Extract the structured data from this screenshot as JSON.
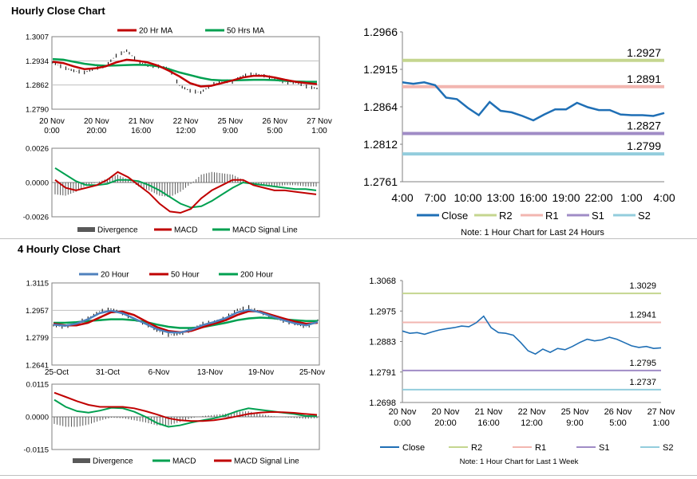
{
  "sections": {
    "hourly_title": "Hourly Close Chart",
    "four_hourly_title": "4 Hourly Close Chart"
  },
  "chart_data": [
    {
      "id": "hourly_price",
      "type": "line",
      "title": "",
      "legend": [
        "20 Hr MA",
        "50 Hrs MA"
      ],
      "legend_colors": [
        "#c00000",
        "#00a050"
      ],
      "ylim": [
        1.279,
        1.3007
      ],
      "yticks": [
        "1.3007",
        "1.2934",
        "1.2862",
        "1.2790"
      ],
      "xticks": [
        [
          "20 Nov",
          "0:00"
        ],
        [
          "20 Nov",
          "20:00"
        ],
        [
          "21 Nov",
          "16:00"
        ],
        [
          "22 Nov",
          "12:00"
        ],
        [
          "25 Nov",
          "9:00"
        ],
        [
          "26 Nov",
          "5:00"
        ],
        [
          "27 Nov",
          "1:00"
        ]
      ],
      "series": [
        {
          "name": "Close",
          "values": [
            1.293,
            1.2915,
            1.2905,
            1.29,
            1.2912,
            1.292,
            1.295,
            1.2965,
            1.2935,
            1.292,
            1.2918,
            1.2912,
            1.286,
            1.2845,
            1.284,
            1.2862,
            1.2875,
            1.2872,
            1.289,
            1.2895,
            1.289,
            1.288,
            1.287,
            1.287,
            1.2858,
            1.2852
          ]
        },
        {
          "name": "20 Hr MA",
          "values": [
            1.2932,
            1.2928,
            1.2918,
            1.291,
            1.2912,
            1.2918,
            1.293,
            1.2938,
            1.2935,
            1.293,
            1.292,
            1.2905,
            1.2888,
            1.2868,
            1.2858,
            1.286,
            1.2868,
            1.2876,
            1.2885,
            1.289,
            1.289,
            1.2885,
            1.2878,
            1.2872,
            1.2868,
            1.2865
          ]
        },
        {
          "name": "50 Hrs MA",
          "values": [
            1.294,
            1.2938,
            1.2932,
            1.2926,
            1.2922,
            1.292,
            1.2921,
            1.2922,
            1.2923,
            1.2922,
            1.2918,
            1.291,
            1.29,
            1.2892,
            1.2884,
            1.2878,
            1.2876,
            1.2876,
            1.2877,
            1.2878,
            1.2878,
            1.2877,
            1.2875,
            1.2873,
            1.2872,
            1.2872
          ]
        }
      ]
    },
    {
      "id": "hourly_macd",
      "type": "line",
      "legend": [
        "Divergence",
        "MACD",
        "MACD Signal Line"
      ],
      "legend_colors": [
        "#595959",
        "#c00000",
        "#00a050"
      ],
      "ylim": [
        -0.0026,
        0.0026
      ],
      "yticks": [
        "0.0026",
        "0.0000",
        "-0.0026"
      ],
      "series": [
        {
          "name": "MACD",
          "values": [
            0.0002,
            -0.0004,
            -0.0006,
            -0.0004,
            -0.0002,
            0.0002,
            0.0008,
            0.0004,
            -0.0002,
            -0.0008,
            -0.0016,
            -0.0022,
            -0.0023,
            -0.002,
            -0.0012,
            -0.0006,
            -0.0002,
            0.0002,
            0.0002,
            -0.0002,
            -0.0004,
            -0.0006,
            -0.0006,
            -0.0007,
            -0.0008,
            -0.0009
          ]
        },
        {
          "name": "MACD Signal Line",
          "values": [
            0.0011,
            0.0006,
            0.0001,
            -0.0002,
            -0.0002,
            -0.0001,
            0.0002,
            0.0002,
            0.0001,
            -0.0002,
            -0.0006,
            -0.0011,
            -0.0016,
            -0.0019,
            -0.0018,
            -0.0014,
            -0.0009,
            -0.0004,
            0.0,
            -0.0001,
            -0.0002,
            -0.0003,
            -0.0004,
            -0.0005,
            -0.0005,
            -0.0006
          ]
        },
        {
          "name": "Divergence",
          "values": [
            -0.0009,
            -0.001,
            -0.0007,
            -0.0002,
            0.0,
            0.0003,
            0.0006,
            0.0002,
            -0.0003,
            -0.0006,
            -0.001,
            -0.0011,
            -0.0007,
            -0.0001,
            0.0006,
            0.0008,
            0.0007,
            0.0006,
            0.0002,
            -0.0001,
            -0.0002,
            -0.0003,
            -0.0002,
            -0.0002,
            -0.0003,
            -0.0003
          ]
        }
      ]
    },
    {
      "id": "hourly_levels",
      "type": "line",
      "ylim": [
        1.2761,
        1.2966
      ],
      "yticks": [
        "1.2966",
        "1.2915",
        "1.2864",
        "1.2812",
        "1.2761"
      ],
      "xticks": [
        "4:00",
        "7:00",
        "10:00",
        "13:00",
        "16:00",
        "19:00",
        "22:00",
        "1:00",
        "4:00"
      ],
      "close": [
        1.2897,
        1.2895,
        1.2897,
        1.2893,
        1.2876,
        1.2874,
        1.2862,
        1.2852,
        1.287,
        1.2858,
        1.2856,
        1.2851,
        1.2845,
        1.2853,
        1.286,
        1.286,
        1.2869,
        1.2863,
        1.2859,
        1.2859,
        1.2853,
        1.2852,
        1.2852,
        1.2851,
        1.2855
      ],
      "levels": [
        {
          "name": "R2",
          "value": "1.2927",
          "color": "#c5d68f"
        },
        {
          "name": "R1",
          "value": "1.2891",
          "color": "#f2b6b0"
        },
        {
          "name": "S1",
          "value": "1.2827",
          "color": "#a08cc6"
        },
        {
          "name": "S2",
          "value": "1.2799",
          "color": "#93cddd"
        }
      ],
      "legend": [
        "Close",
        "R2",
        "R1",
        "S1",
        "S2"
      ],
      "note": "Note: 1 Hour Chart for Last 24 Hours"
    },
    {
      "id": "four_hourly_price",
      "type": "line",
      "legend": [
        "20 Hour",
        "50 Hour",
        "200 Hour"
      ],
      "legend_colors": [
        "#4f81bd",
        "#c00000",
        "#00a050"
      ],
      "ylim": [
        1.2641,
        1.3115
      ],
      "yticks": [
        "1.3115",
        "1.2957",
        "1.2799",
        "1.2641"
      ],
      "xticks": [
        "25-Oct",
        "31-Oct",
        "6-Nov",
        "13-Nov",
        "19-Nov",
        "25-Nov"
      ],
      "series": [
        {
          "name": "Close",
          "values": [
            1.287,
            1.286,
            1.2885,
            1.291,
            1.295,
            1.2965,
            1.294,
            1.2905,
            1.288,
            1.284,
            1.2815,
            1.282,
            1.2845,
            1.288,
            1.289,
            1.2915,
            1.296,
            1.2975,
            1.2945,
            1.292,
            1.2895,
            1.288,
            1.286,
            1.29
          ]
        },
        {
          "name": "20 Hour",
          "values": [
            1.2875,
            1.2868,
            1.288,
            1.2905,
            1.294,
            1.2955,
            1.294,
            1.291,
            1.288,
            1.2848,
            1.283,
            1.2828,
            1.2845,
            1.2872,
            1.289,
            1.2912,
            1.2945,
            1.296,
            1.2945,
            1.2922,
            1.29,
            1.2882,
            1.287,
            1.289
          ]
        },
        {
          "name": "50 Hour",
          "values": [
            1.288,
            1.287,
            1.287,
            1.2885,
            1.2915,
            1.2945,
            1.295,
            1.293,
            1.2895,
            1.286,
            1.2838,
            1.283,
            1.2838,
            1.286,
            1.288,
            1.29,
            1.293,
            1.2952,
            1.295,
            1.293,
            1.291,
            1.2892,
            1.288,
            1.2885
          ]
        },
        {
          "name": "200 Hour",
          "values": [
            1.2885,
            1.2885,
            1.2888,
            1.2895,
            1.29,
            1.2905,
            1.2905,
            1.29,
            1.289,
            1.2875,
            1.2862,
            1.2855,
            1.2855,
            1.286,
            1.2872,
            1.2885,
            1.29,
            1.291,
            1.2915,
            1.2912,
            1.2905,
            1.29,
            1.2895,
            1.2895
          ]
        }
      ]
    },
    {
      "id": "four_hourly_macd",
      "type": "line",
      "legend": [
        "Divergence",
        "MACD",
        "MACD Signal Line"
      ],
      "legend_colors": [
        "#595959",
        "#00a050",
        "#c00000"
      ],
      "ylim": [
        -0.0115,
        0.0115
      ],
      "yticks": [
        "0.0115",
        "0.0000",
        "-0.0115"
      ],
      "series": [
        {
          "name": "MACD",
          "values": [
            0.006,
            0.0035,
            0.002,
            0.0015,
            0.0022,
            0.0032,
            0.003,
            0.0018,
            0.0,
            -0.0022,
            -0.0035,
            -0.003,
            -0.002,
            -0.0012,
            -0.0005,
            0.0005,
            0.002,
            0.003,
            0.0025,
            0.002,
            0.0015,
            0.001,
            0.0003,
            0.0002
          ]
        },
        {
          "name": "MACD Signal Line",
          "values": [
            0.0085,
            0.007,
            0.0055,
            0.0042,
            0.0035,
            0.0035,
            0.0035,
            0.003,
            0.002,
            0.0008,
            -0.0005,
            -0.0012,
            -0.0015,
            -0.0015,
            -0.0012,
            -0.0006,
            0.0002,
            0.001,
            0.0015,
            0.0017,
            0.0016,
            0.0014,
            0.001,
            0.0007
          ]
        },
        {
          "name": "Divergence",
          "values": [
            -0.0025,
            -0.0035,
            -0.0035,
            -0.0027,
            -0.0013,
            -0.0003,
            -0.0005,
            -0.0012,
            -0.002,
            -0.003,
            -0.003,
            -0.0018,
            -0.0005,
            0.0003,
            0.0007,
            0.0011,
            0.0018,
            0.002,
            0.001,
            0.0003,
            -0.0001,
            -0.0004,
            -0.0007,
            -0.0005
          ]
        }
      ]
    },
    {
      "id": "four_hourly_levels",
      "type": "line",
      "ylim": [
        1.2698,
        1.3068
      ],
      "yticks": [
        "1.3068",
        "1.2975",
        "1.2883",
        "1.2791",
        "1.2698"
      ],
      "xticks": [
        [
          "20 Nov",
          "0:00"
        ],
        [
          "20 Nov",
          "20:00"
        ],
        [
          "21 Nov",
          "16:00"
        ],
        [
          "22 Nov",
          "12:00"
        ],
        [
          "25 Nov",
          "9:00"
        ],
        [
          "26 Nov",
          "5:00"
        ],
        [
          "27 Nov",
          "1:00"
        ]
      ],
      "close": [
        1.2915,
        1.2908,
        1.291,
        1.2905,
        1.2912,
        1.2918,
        1.2922,
        1.2925,
        1.293,
        1.2928,
        1.294,
        1.296,
        1.2925,
        1.291,
        1.2908,
        1.2902,
        1.288,
        1.2855,
        1.2845,
        1.286,
        1.285,
        1.2862,
        1.2858,
        1.2868,
        1.288,
        1.289,
        1.2885,
        1.2888,
        1.2896,
        1.289,
        1.288,
        1.287,
        1.2865,
        1.2868,
        1.2862,
        1.2864
      ],
      "levels": [
        {
          "name": "R2",
          "value": "1.3029",
          "color": "#c5d68f"
        },
        {
          "name": "R1",
          "value": "1.2941",
          "color": "#f2b6b0"
        },
        {
          "name": "S1",
          "value": "1.2795",
          "color": "#a08cc6"
        },
        {
          "name": "S2",
          "value": "1.2737",
          "color": "#93cddd"
        }
      ],
      "legend": [
        "Close",
        "R2",
        "R1",
        "S1",
        "S2"
      ],
      "note": "Note: 1 Hour Chart for Last 1 Week"
    }
  ]
}
